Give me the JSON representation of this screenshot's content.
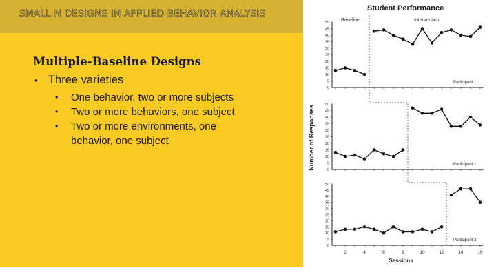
{
  "header": {
    "title": "SMALL N DESIGNS IN APPLIED BEHAVIOR ANALYSIS"
  },
  "slide": {
    "title": "Multiple-Baseline Designs",
    "bullet": "Three varieties",
    "subbullets": [
      "One behavior, two or more subjects",
      "Two or more behaviors, one subject",
      "Two or more environments, one behavior, one subject"
    ]
  },
  "colors": {
    "panel": "#fbca23",
    "header_band": "#d6b030",
    "line": "#000000"
  },
  "chart_data": {
    "type": "line",
    "title": "Student Performance",
    "xlabel": "Sessions",
    "ylabel": "Number of Responses",
    "x_ticks": [
      2,
      4,
      6,
      8,
      10,
      12,
      14,
      16
    ],
    "xlim": [
      0,
      16
    ],
    "ylim": [
      0,
      50
    ],
    "y_ticks": [
      0,
      5,
      10,
      15,
      20,
      25,
      30,
      35,
      40,
      45,
      50
    ],
    "phase_labels": [
      "Baseline",
      "Intervention"
    ],
    "panels": [
      {
        "label": "Participant 1",
        "phase_change_after": 4,
        "baseline": [
          [
            1,
            13
          ],
          [
            2,
            15
          ],
          [
            3,
            13
          ],
          [
            4,
            10
          ]
        ],
        "intervention": [
          [
            5,
            43
          ],
          [
            6,
            44
          ],
          [
            7,
            40
          ],
          [
            8,
            37
          ],
          [
            9,
            33
          ],
          [
            10,
            45
          ],
          [
            11,
            34
          ],
          [
            12,
            42
          ],
          [
            13,
            44
          ],
          [
            14,
            40
          ],
          [
            15,
            39
          ],
          [
            16,
            46
          ]
        ]
      },
      {
        "label": "Participant 2",
        "phase_change_after": 8,
        "baseline": [
          [
            1,
            13
          ],
          [
            2,
            10
          ],
          [
            3,
            11
          ],
          [
            4,
            8
          ],
          [
            5,
            15
          ],
          [
            6,
            12
          ],
          [
            7,
            10
          ],
          [
            8,
            15
          ]
        ],
        "intervention": [
          [
            9,
            47
          ],
          [
            10,
            43
          ],
          [
            11,
            43
          ],
          [
            12,
            46
          ],
          [
            13,
            33
          ],
          [
            14,
            33
          ],
          [
            15,
            40
          ],
          [
            16,
            34
          ]
        ]
      },
      {
        "label": "Participant 3",
        "phase_change_after": 12,
        "baseline": [
          [
            1,
            11
          ],
          [
            2,
            13
          ],
          [
            3,
            13
          ],
          [
            4,
            15
          ],
          [
            5,
            13
          ],
          [
            6,
            10
          ],
          [
            7,
            15
          ],
          [
            8,
            11
          ],
          [
            9,
            11
          ],
          [
            10,
            13
          ],
          [
            11,
            11
          ],
          [
            12,
            15
          ]
        ],
        "intervention": [
          [
            13,
            41
          ],
          [
            14,
            46
          ],
          [
            15,
            46
          ],
          [
            16,
            35
          ]
        ]
      }
    ]
  }
}
